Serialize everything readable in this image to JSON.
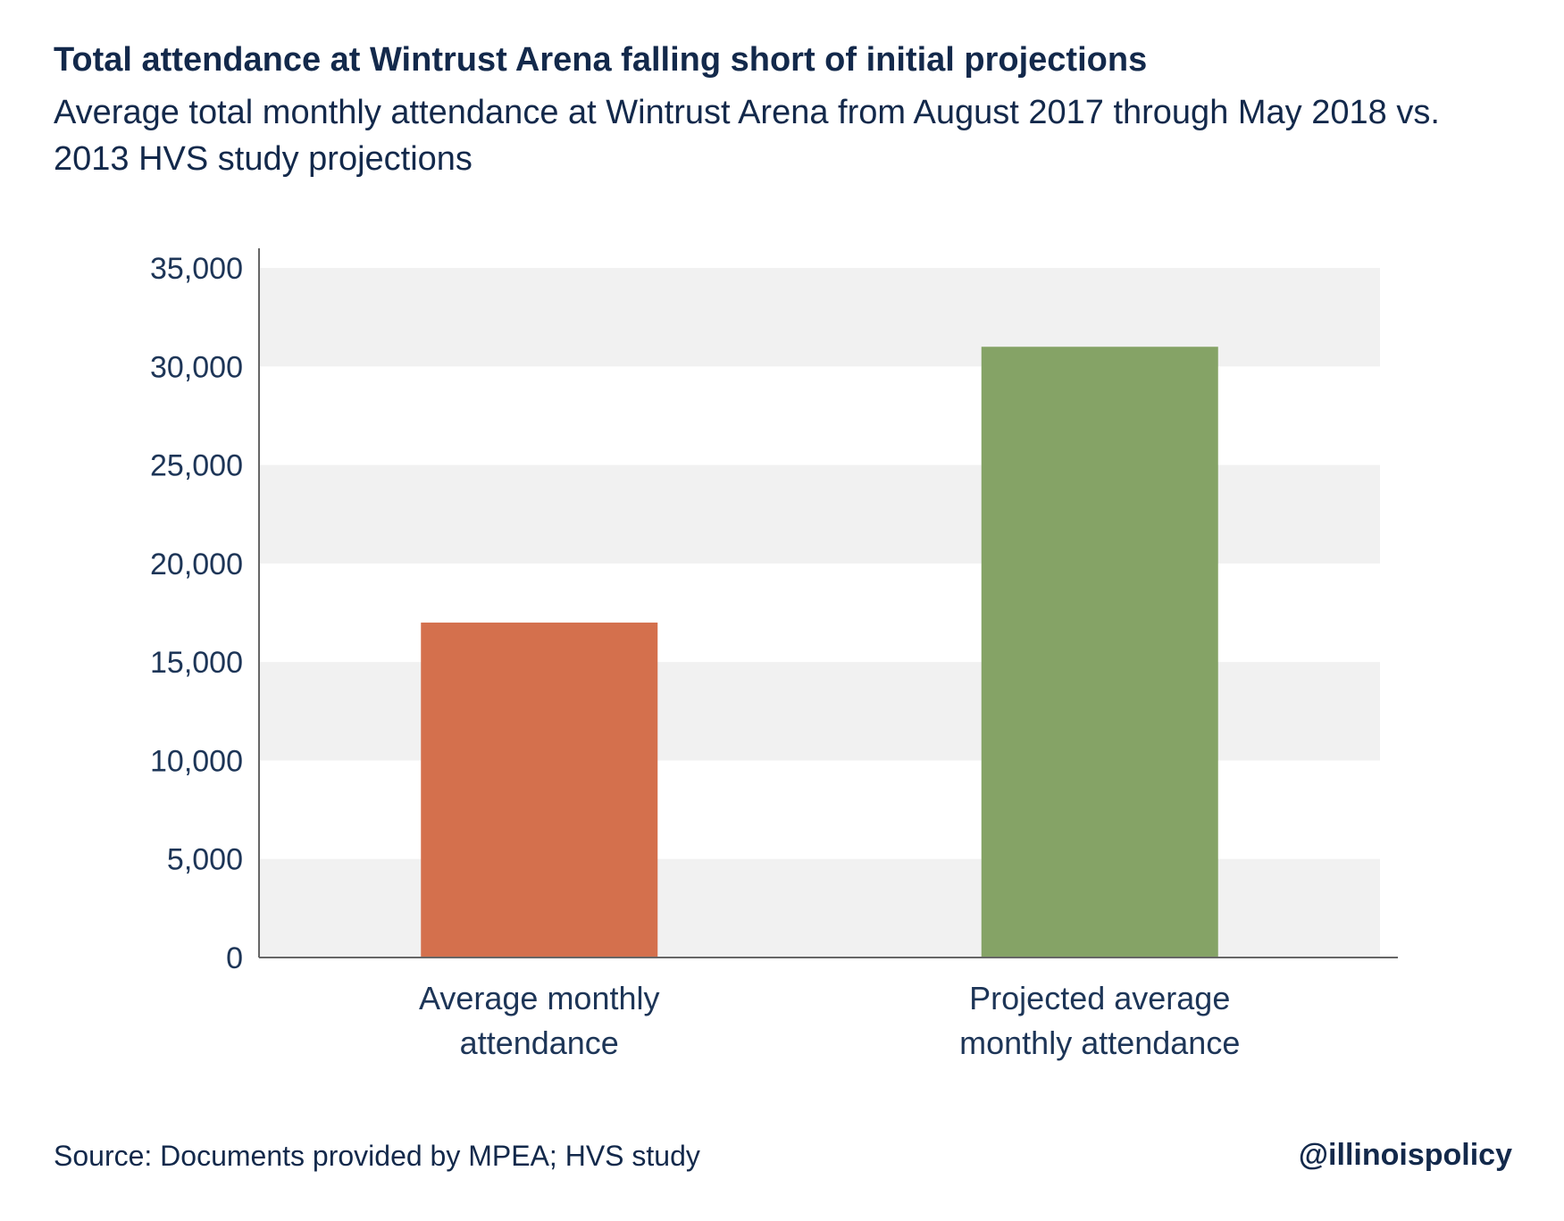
{
  "header": {
    "title": "Total attendance at Wintrust Arena falling short of initial projections",
    "subtitle": "Average total monthly attendance at Wintrust Arena from August 2017 through May 2018 vs. 2013 HVS study projections"
  },
  "footer": {
    "source": "Source: Documents provided by MPEA; HVS study",
    "handle": "@illinoispolicy"
  },
  "chart_data": {
    "type": "bar",
    "categories": [
      [
        "Average monthly",
        "attendance"
      ],
      [
        "Projected average",
        "monthly attendance"
      ]
    ],
    "values": [
      17000,
      31000
    ],
    "colors": [
      "#d4704d",
      "#85a366"
    ],
    "ylim": [
      0,
      35000
    ],
    "yticks": [
      "0",
      "5,000",
      "10,000",
      "15,000",
      "20,000",
      "25,000",
      "30,000",
      "35,000"
    ],
    "ytick_values": [
      0,
      5000,
      10000,
      15000,
      20000,
      25000,
      30000,
      35000
    ],
    "grid": "alternating bands",
    "band_color": "#f1f1f1",
    "xlabel": "",
    "ylabel": ""
  }
}
